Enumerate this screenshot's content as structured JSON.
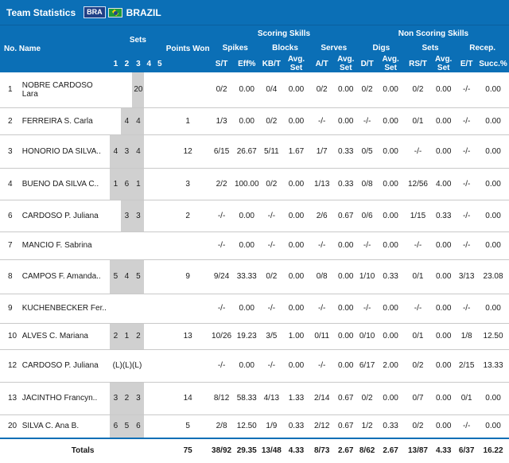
{
  "header": {
    "title": "Team Statistics",
    "team_code": "BRA",
    "country": "BRAZIL"
  },
  "columns": {
    "no_name": "No. Name",
    "sets": "Sets",
    "set_nums": [
      "1",
      "2",
      "3",
      "4",
      "5"
    ],
    "points_won": "Points Won",
    "scoring_skills": "Scoring Skills",
    "non_scoring_skills": "Non Scoring Skills",
    "groups": {
      "spikes": "Spikes",
      "blocks": "Blocks",
      "serves": "Serves",
      "digs": "Digs",
      "sets": "Sets",
      "recep": "Recep."
    },
    "sub": {
      "st": "S/T",
      "eff": "Eff%",
      "kbt": "KB/T",
      "avg_set": "Avg. Set",
      "at": "A/T",
      "dt": "D/T",
      "rst": "RS/T",
      "et": "E/T",
      "succ": "Succ.%"
    }
  },
  "rows": [
    {
      "no": "1",
      "name": "NOBRE CARDOSO Lara",
      "s": [
        "",
        "",
        "20",
        "",
        ""
      ],
      "pts": "",
      "sp_st": "0/2",
      "sp_eff": "0.00",
      "bl_kbt": "0/4",
      "bl_avg": "0.00",
      "sv_at": "0/2",
      "sv_avg": "0.00",
      "dg_dt": "0/2",
      "dg_avg": "0.00",
      "st_rst": "0/2",
      "st_avg": "0.00",
      "rc_et": "-/-",
      "rc_succ": "0.00",
      "h": 44
    },
    {
      "no": "2",
      "name": "FERREIRA S. Carla",
      "s": [
        "",
        "4",
        "4",
        "",
        ""
      ],
      "pts": "1",
      "sp_st": "1/3",
      "sp_eff": "0.00",
      "bl_kbt": "0/2",
      "bl_avg": "0.00",
      "sv_at": "-/-",
      "sv_avg": "0.00",
      "dg_dt": "-/-",
      "dg_avg": "0.00",
      "st_rst": "0/1",
      "st_avg": "0.00",
      "rc_et": "-/-",
      "rc_succ": "0.00",
      "h": 34
    },
    {
      "no": "3",
      "name": "HONORIO DA SILVA..",
      "s": [
        "4",
        "3",
        "4",
        "",
        ""
      ],
      "pts": "12",
      "sp_st": "6/15",
      "sp_eff": "26.67",
      "bl_kbt": "5/11",
      "bl_avg": "1.67",
      "sv_at": "1/7",
      "sv_avg": "0.33",
      "dg_dt": "0/5",
      "dg_avg": "0.00",
      "st_rst": "-/-",
      "st_avg": "0.00",
      "rc_et": "-/-",
      "rc_succ": "0.00",
      "h": 42
    },
    {
      "no": "4",
      "name": "BUENO DA SILVA C..",
      "s": [
        "1",
        "6",
        "1",
        "",
        ""
      ],
      "pts": "3",
      "sp_st": "2/2",
      "sp_eff": "100.00",
      "bl_kbt": "0/2",
      "bl_avg": "0.00",
      "sv_at": "1/13",
      "sv_avg": "0.33",
      "dg_dt": "0/8",
      "dg_avg": "0.00",
      "st_rst": "12/56",
      "st_avg": "4.00",
      "rc_et": "-/-",
      "rc_succ": "0.00",
      "h": 40
    },
    {
      "no": "6",
      "name": "CARDOSO P. Juliana",
      "s": [
        "",
        "3",
        "3",
        "",
        ""
      ],
      "pts": "2",
      "sp_st": "-/-",
      "sp_eff": "0.00",
      "bl_kbt": "-/-",
      "bl_avg": "0.00",
      "sv_at": "2/6",
      "sv_avg": "0.67",
      "dg_dt": "0/6",
      "dg_avg": "0.00",
      "st_rst": "1/15",
      "st_avg": "0.33",
      "rc_et": "-/-",
      "rc_succ": "0.00",
      "h": 40
    },
    {
      "no": "7",
      "name": "MANCIO F. Sabrina",
      "s": [
        "",
        "",
        "",
        "",
        ""
      ],
      "pts": "",
      "sp_st": "-/-",
      "sp_eff": "0.00",
      "bl_kbt": "-/-",
      "bl_avg": "0.00",
      "sv_at": "-/-",
      "sv_avg": "0.00",
      "dg_dt": "-/-",
      "dg_avg": "0.00",
      "st_rst": "-/-",
      "st_avg": "0.00",
      "rc_et": "-/-",
      "rc_succ": "0.00",
      "h": 35
    },
    {
      "no": "8",
      "name": "CAMPOS F. Amanda..",
      "s": [
        "5",
        "4",
        "5",
        "",
        ""
      ],
      "pts": "9",
      "sp_st": "9/24",
      "sp_eff": "33.33",
      "bl_kbt": "0/2",
      "bl_avg": "0.00",
      "sv_at": "0/8",
      "sv_avg": "0.00",
      "dg_dt": "1/10",
      "dg_avg": "0.33",
      "st_rst": "0/1",
      "st_avg": "0.00",
      "rc_et": "3/13",
      "rc_succ": "23.08",
      "h": 43
    },
    {
      "no": "9",
      "name": "KUCHENBECKER Fer..",
      "s": [
        "",
        "",
        "",
        "",
        ""
      ],
      "pts": "",
      "sp_st": "-/-",
      "sp_eff": "0.00",
      "bl_kbt": "-/-",
      "bl_avg": "0.00",
      "sv_at": "-/-",
      "sv_avg": "0.00",
      "dg_dt": "-/-",
      "dg_avg": "0.00",
      "st_rst": "-/-",
      "st_avg": "0.00",
      "rc_et": "-/-",
      "rc_succ": "0.00",
      "h": 37
    },
    {
      "no": "10",
      "name": "ALVES C. Mariana",
      "s": [
        "2",
        "1",
        "2",
        "",
        ""
      ],
      "pts": "13",
      "sp_st": "10/26",
      "sp_eff": "19.23",
      "bl_kbt": "3/5",
      "bl_avg": "1.00",
      "sv_at": "0/11",
      "sv_avg": "0.00",
      "dg_dt": "0/10",
      "dg_avg": "0.00",
      "st_rst": "0/1",
      "st_avg": "0.00",
      "rc_et": "1/8",
      "rc_succ": "12.50",
      "h": 33
    },
    {
      "no": "12",
      "name": "CARDOSO P. Juliana",
      "s": [
        "(L)",
        "(L)",
        "(L)",
        "",
        ""
      ],
      "pts": "",
      "sp_st": "-/-",
      "sp_eff": "0.00",
      "bl_kbt": "-/-",
      "bl_avg": "0.00",
      "sv_at": "-/-",
      "sv_avg": "0.00",
      "dg_dt": "6/17",
      "dg_avg": "2.00",
      "st_rst": "0/2",
      "st_avg": "0.00",
      "rc_et": "2/15",
      "rc_succ": "13.33",
      "h": 41,
      "libero": true
    },
    {
      "no": "13",
      "name": "JACINTHO Francyn..",
      "s": [
        "3",
        "2",
        "3",
        "",
        ""
      ],
      "pts": "14",
      "sp_st": "8/12",
      "sp_eff": "58.33",
      "bl_kbt": "4/13",
      "bl_avg": "1.33",
      "sv_at": "2/14",
      "sv_avg": "0.67",
      "dg_dt": "0/2",
      "dg_avg": "0.00",
      "st_rst": "0/7",
      "st_avg": "0.00",
      "rc_et": "0/1",
      "rc_succ": "0.00",
      "h": 41
    },
    {
      "no": "20",
      "name": "SILVA C. Ana B.",
      "s": [
        "6",
        "5",
        "6",
        "",
        ""
      ],
      "pts": "5",
      "sp_st": "2/8",
      "sp_eff": "12.50",
      "bl_kbt": "1/9",
      "bl_avg": "0.33",
      "sv_at": "2/12",
      "sv_avg": "0.67",
      "dg_dt": "1/2",
      "dg_avg": "0.33",
      "st_rst": "0/2",
      "st_avg": "0.00",
      "rc_et": "-/-",
      "rc_succ": "0.00",
      "h": 30
    }
  ],
  "totals": {
    "label": "Totals",
    "pts": "75",
    "sp_st": "38/92",
    "sp_eff": "29.35",
    "bl_kbt": "13/48",
    "bl_avg": "4.33",
    "sv_at": "8/73",
    "sv_avg": "2.67",
    "dg_dt": "8/62",
    "dg_avg": "2.67",
    "st_rst": "13/87",
    "st_avg": "4.33",
    "rc_et": "6/37",
    "rc_succ": "16.22"
  },
  "colors": {
    "header_bg": "#0b6fb6",
    "set_cell_bg": "#d0d0d0"
  }
}
